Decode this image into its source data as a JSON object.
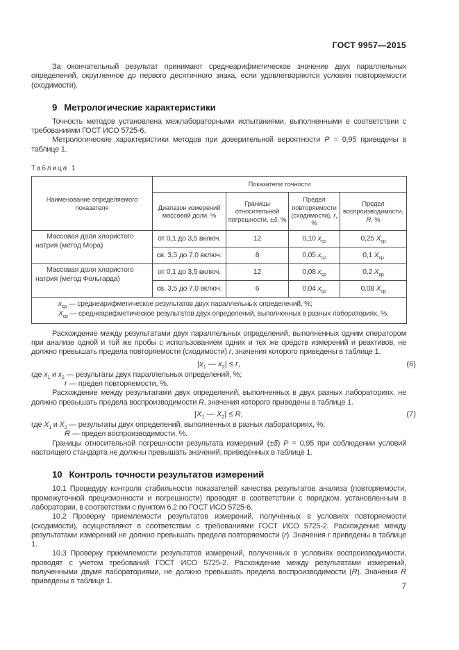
{
  "doc": {
    "number": "ГОСТ 9957—2015",
    "page_number": "7"
  },
  "intro": {
    "text": "За окончательный результат принимают среднеарифметическое значение двух параллельных определений, округленное до первого десятичного знака, если удовлетворяются условия повторяемости (сходимости)."
  },
  "section9": {
    "number": "9",
    "title": "Метрологические характеристики",
    "p1": "Точность методов установлена межлабораторными испытаниями, выполненными в соответствии с требованиями ГОСТ ИСО 5725-6.",
    "p2": [
      {
        "t": "Метрологические характеристики методов при доверительной вероятности "
      },
      {
        "t": "P",
        "i": true
      },
      {
        "t": " = 0,95 приведены в таблице 1."
      }
    ]
  },
  "table1": {
    "label": "Таблица 1",
    "header": {
      "indicator": "Наименование определяемого показателя",
      "accuracy_group": "Показатели точности",
      "range": "Диапазон измерений массовой доли, %",
      "error": [
        {
          "t": "Границы относительной погрешности, ±"
        },
        {
          "t": "δ",
          "i": true
        },
        {
          "t": ", %"
        }
      ],
      "repeatability": [
        {
          "t": "Предел повторяемости (сходимости), "
        },
        {
          "t": "r",
          "i": true
        },
        {
          "t": ", %"
        }
      ],
      "reproducibility": [
        {
          "t": "Предел воспроизводимости, "
        },
        {
          "t": "R",
          "i": true
        },
        {
          "t": ", %"
        }
      ]
    },
    "rows": [
      {
        "indicator": "Массовая доля хлористого натрия (метод Мора)",
        "sub": [
          {
            "range": "от 0,1 до 3,5 включ.",
            "error": "12",
            "r": [
              {
                "t": "0,10 "
              },
              {
                "t": "x",
                "i": true
              },
              {
                "t": "ср",
                "sub": true
              }
            ],
            "R": [
              {
                "t": "0,25 "
              },
              {
                "t": "X",
                "i": true
              },
              {
                "t": "ср",
                "sub": true
              }
            ]
          },
          {
            "range": "св. 3,5 до 7,0 включ.",
            "error": "8",
            "r": [
              {
                "t": "0,05 "
              },
              {
                "t": "x",
                "i": true
              },
              {
                "t": "ср",
                "sub": true
              }
            ],
            "R": [
              {
                "t": "0,1 "
              },
              {
                "t": "X",
                "i": true
              },
              {
                "t": "ср",
                "sub": true
              }
            ]
          }
        ]
      },
      {
        "indicator": "Массовая доля хлористого натрия (метод Фольгарда)",
        "sub": [
          {
            "range": "от 0,1 до 3,5 включ.",
            "error": "12",
            "r": [
              {
                "t": "0,08 "
              },
              {
                "t": "x",
                "i": true
              },
              {
                "t": "ср",
                "sub": true
              }
            ],
            "R": [
              {
                "t": "0,2 "
              },
              {
                "t": "X",
                "i": true
              },
              {
                "t": "ср",
                "sub": true
              }
            ]
          },
          {
            "range": "св. 3,5 до 7,0 включ.",
            "error": "6",
            "r": [
              {
                "t": "0,04 "
              },
              {
                "t": "x",
                "i": true
              },
              {
                "t": "ср",
                "sub": true
              }
            ],
            "R": [
              {
                "t": "0,08 "
              },
              {
                "t": "X",
                "i": true
              },
              {
                "t": "ср",
                "sub": true
              }
            ]
          }
        ]
      }
    ],
    "footnotes": [
      [
        {
          "t": "x",
          "i": true
        },
        {
          "t": "ср",
          "sub": true
        },
        {
          "t": " — среднеарифметическое результатов двух параллельных определений, %;"
        }
      ],
      [
        {
          "t": "X",
          "i": true
        },
        {
          "t": "ср",
          "sub": true
        },
        {
          "t": " — среднеарифметическое результатов двух определений, выполненных в разных лабораториях, %."
        }
      ]
    ]
  },
  "body": {
    "p_repeatability": [
      {
        "t": "Расхождение между результатами двух параллельных определений, выполненных одним оператором при анализе одной и той же пробы с использованием одних и тех же средств измерений и реактивов, не должно превышать предела повторяемости (сходимости) "
      },
      {
        "t": "r",
        "i": true
      },
      {
        "t": ", значения которого приведены в таблице 1."
      }
    ],
    "p_reproducibility": [
      {
        "t": "Расхождение между результатами двух определений, выполненных в двух разных лабораториях, не должно превышать предела воспроизводимости "
      },
      {
        "t": "R",
        "i": true
      },
      {
        "t": ", значения которого приведены в таблице 1."
      }
    ],
    "p_error_limits": [
      {
        "t": "Границы относительной погрешности результата измерений (±"
      },
      {
        "t": "δ",
        "i": true
      },
      {
        "t": ") "
      },
      {
        "t": "P",
        "i": true
      },
      {
        "t": " = 0,95 при соблюдении условий настоящего стандарта не должны превышать значений, приведенных в таблице 1."
      }
    ]
  },
  "formulas": {
    "f6": {
      "expr": [
        {
          "t": "|"
        },
        {
          "t": "x",
          "i": true
        },
        {
          "t": "1",
          "sub": true
        },
        {
          "t": " — "
        },
        {
          "t": "x",
          "i": true
        },
        {
          "t": "2",
          "sub": true
        },
        {
          "t": "| ≤ "
        },
        {
          "t": "r",
          "i": true
        },
        {
          "t": ","
        }
      ],
      "number": "(6)",
      "where1": [
        {
          "t": "где "
        },
        {
          "t": "x",
          "i": true
        },
        {
          "t": "1",
          "sub": true
        },
        {
          "t": " и "
        },
        {
          "t": "x",
          "i": true
        },
        {
          "t": "2",
          "sub": true
        },
        {
          "t": " — результаты двух параллельных определений, %;"
        }
      ],
      "where2": [
        {
          "t": "r",
          "i": true
        },
        {
          "t": " — предел повторяемости, %."
        }
      ]
    },
    "f7": {
      "expr": [
        {
          "t": "|"
        },
        {
          "t": "X",
          "i": true
        },
        {
          "t": "1",
          "sub": true
        },
        {
          "t": " — "
        },
        {
          "t": "X",
          "i": true
        },
        {
          "t": "2",
          "sub": true
        },
        {
          "t": "| ≤ "
        },
        {
          "t": "R",
          "i": true
        },
        {
          "t": ","
        }
      ],
      "number": "(7)",
      "where1": [
        {
          "t": "где "
        },
        {
          "t": "X",
          "i": true
        },
        {
          "t": "1",
          "sub": true
        },
        {
          "t": " и "
        },
        {
          "t": "X",
          "i": true
        },
        {
          "t": "2",
          "sub": true
        },
        {
          "t": " — результаты двух определений, выполненных в разных лабораториях, %;"
        }
      ],
      "where2": [
        {
          "t": "R",
          "i": true
        },
        {
          "t": " — предел воспроизводимости, %."
        }
      ]
    }
  },
  "section10": {
    "number": "10",
    "title": "Контроль точности результатов измерений",
    "p1": "10.1 Процедуру контроля стабильности показателей качества результатов анализа (повторяемости, промежуточной прецизионности и погрешности) проводят в соответствии с порядком, установленным в лаборатории, в соответствии с пунктом 6.2 по ГОСТ ИСО 5725-6.",
    "p2": [
      {
        "t": "10.2 Проверку приемлемости результатов измерений, полученных в условиях повторяемости (сходимости), осуществляют в соответствии с требованиями ГОСТ ИСО 5725-2. Расхождение между результатами измерений не должно превышать предела повторяемости ("
      },
      {
        "t": "r",
        "i": true
      },
      {
        "t": "). Значения "
      },
      {
        "t": "r",
        "i": true
      },
      {
        "t": " приведены в таблице 1."
      }
    ],
    "p3": [
      {
        "t": "10.3 Проверку приемлемости результатов измерений, полученных в условиях воспроизводимости, проводят с учетом требований ГОСТ ИСО 5725-2. Расхождение между результатами измерений, полученными двумя лабораториями, не должно превышать предела воспроизводимости ("
      },
      {
        "t": "R",
        "i": true
      },
      {
        "t": "). Значения "
      },
      {
        "t": "R",
        "i": true
      },
      {
        "t": " приведены в таблице 1."
      }
    ]
  }
}
